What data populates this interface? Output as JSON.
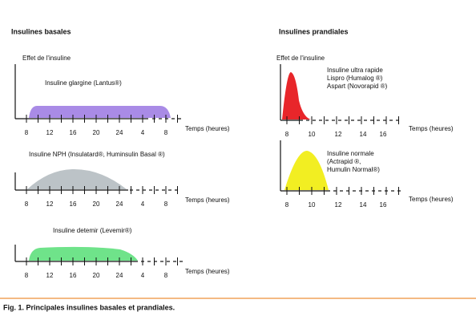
{
  "left": {
    "title": "Insulines basales",
    "y_label": "Effet de l'insuline",
    "panels": [
      {
        "label": "Insuline glargine (Lantus®)",
        "x_label": "Temps (heures)",
        "ticks": [
          "8",
          "12",
          "16",
          "20",
          "24",
          "4",
          "8"
        ]
      },
      {
        "label": "Insuline NPH (Insulatard®, Huminsulin Basal ®)",
        "x_label": "Temps (heures)",
        "ticks": [
          "8",
          "12",
          "16",
          "20",
          "24",
          "4",
          "8"
        ]
      },
      {
        "label": "Insuline detemir (Levemir®)",
        "x_label": "Temps (heures)",
        "ticks": [
          "8",
          "12",
          "16",
          "20",
          "24",
          "4",
          "8"
        ]
      }
    ]
  },
  "right": {
    "title": "Insulines prandiales",
    "y_label": "Effet de l'insuline",
    "panels": [
      {
        "label_lines": [
          "Insuline ultra rapide",
          "Lispro (Humalog ®)",
          "Aspart (Novorapid ®)"
        ],
        "x_label": "Temps (heures)",
        "ticks": [
          "8",
          "10",
          "12",
          "14",
          "16"
        ]
      },
      {
        "label_lines": [
          "Insuline normale",
          "(Actrapid ®,",
          "Humulin Normal®)"
        ],
        "x_label": "Temps (heures)",
        "ticks": [
          "8",
          "10",
          "12",
          "14",
          "16"
        ]
      }
    ]
  },
  "caption": "Fig. 1. Principales insulines basales et prandiales."
}
